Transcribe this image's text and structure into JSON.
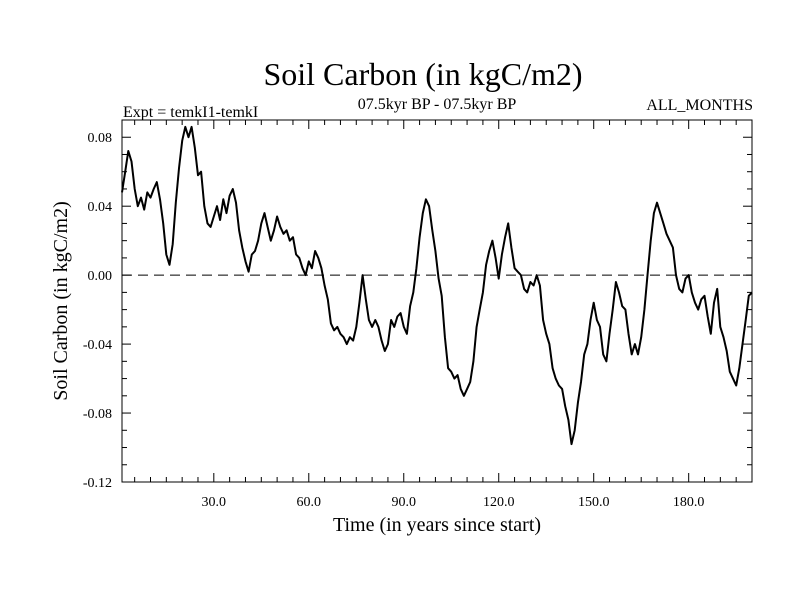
{
  "chart_data": {
    "type": "line",
    "title": "Soil Carbon (in kgC/m2)",
    "expt_label": "Expt = temkI1-temkI",
    "period_label": "07.5kyr BP - 07.5kyr BP",
    "months_label": "ALL_MONTHS",
    "xlabel": "Time (in years since start)",
    "ylabel": "Soil Carbon (in kgC/m2)",
    "xlim": [
      1,
      200
    ],
    "ylim": [
      -0.12,
      0.09
    ],
    "x_ticks": [
      30,
      60,
      90,
      120,
      150,
      180
    ],
    "x_tick_labels": [
      "30.0",
      "60.0",
      "90.0",
      "120.0",
      "150.0",
      "180.0"
    ],
    "y_ticks": [
      -0.12,
      -0.08,
      -0.04,
      0.0,
      0.04,
      0.08
    ],
    "y_tick_labels": [
      "-0.12",
      "-0.08",
      "-0.04",
      "0.00",
      "0.04",
      "0.08"
    ],
    "zero_line": true,
    "series": [
      {
        "name": "Soil Carbon",
        "color": "#000000",
        "points": [
          [
            1,
            0.048
          ],
          [
            2,
            0.06
          ],
          [
            3,
            0.072
          ],
          [
            4,
            0.066
          ],
          [
            5,
            0.05
          ],
          [
            6,
            0.04
          ],
          [
            7,
            0.045
          ],
          [
            8,
            0.038
          ],
          [
            9,
            0.048
          ],
          [
            10,
            0.045
          ],
          [
            11,
            0.05
          ],
          [
            12,
            0.054
          ],
          [
            13,
            0.044
          ],
          [
            14,
            0.03
          ],
          [
            15,
            0.012
          ],
          [
            16,
            0.006
          ],
          [
            17,
            0.018
          ],
          [
            18,
            0.042
          ],
          [
            19,
            0.062
          ],
          [
            20,
            0.078
          ],
          [
            21,
            0.086
          ],
          [
            22,
            0.08
          ],
          [
            23,
            0.086
          ],
          [
            24,
            0.074
          ],
          [
            25,
            0.058
          ],
          [
            26,
            0.06
          ],
          [
            27,
            0.04
          ],
          [
            28,
            0.03
          ],
          [
            29,
            0.028
          ],
          [
            30,
            0.034
          ],
          [
            31,
            0.04
          ],
          [
            32,
            0.032
          ],
          [
            33,
            0.044
          ],
          [
            34,
            0.036
          ],
          [
            35,
            0.046
          ],
          [
            36,
            0.05
          ],
          [
            37,
            0.042
          ],
          [
            38,
            0.026
          ],
          [
            39,
            0.016
          ],
          [
            40,
            0.008
          ],
          [
            41,
            0.002
          ],
          [
            42,
            0.012
          ],
          [
            43,
            0.014
          ],
          [
            44,
            0.02
          ],
          [
            45,
            0.03
          ],
          [
            46,
            0.036
          ],
          [
            47,
            0.028
          ],
          [
            48,
            0.02
          ],
          [
            49,
            0.026
          ],
          [
            50,
            0.034
          ],
          [
            51,
            0.028
          ],
          [
            52,
            0.024
          ],
          [
            53,
            0.026
          ],
          [
            54,
            0.02
          ],
          [
            55,
            0.022
          ],
          [
            56,
            0.012
          ],
          [
            57,
            0.01
          ],
          [
            58,
            0.004
          ],
          [
            59,
            0.0
          ],
          [
            60,
            0.008
          ],
          [
            61,
            0.004
          ],
          [
            62,
            0.014
          ],
          [
            63,
            0.01
          ],
          [
            64,
            0.004
          ],
          [
            65,
            -0.006
          ],
          [
            66,
            -0.014
          ],
          [
            67,
            -0.028
          ],
          [
            68,
            -0.032
          ],
          [
            69,
            -0.03
          ],
          [
            70,
            -0.034
          ],
          [
            71,
            -0.036
          ],
          [
            72,
            -0.04
          ],
          [
            73,
            -0.036
          ],
          [
            74,
            -0.038
          ],
          [
            75,
            -0.03
          ],
          [
            76,
            -0.016
          ],
          [
            77,
            0.0
          ],
          [
            78,
            -0.014
          ],
          [
            79,
            -0.026
          ],
          [
            80,
            -0.03
          ],
          [
            81,
            -0.026
          ],
          [
            82,
            -0.03
          ],
          [
            83,
            -0.038
          ],
          [
            84,
            -0.044
          ],
          [
            85,
            -0.04
          ],
          [
            86,
            -0.026
          ],
          [
            87,
            -0.03
          ],
          [
            88,
            -0.024
          ],
          [
            89,
            -0.022
          ],
          [
            90,
            -0.03
          ],
          [
            91,
            -0.034
          ],
          [
            92,
            -0.018
          ],
          [
            93,
            -0.01
          ],
          [
            94,
            0.004
          ],
          [
            95,
            0.022
          ],
          [
            96,
            0.036
          ],
          [
            97,
            0.044
          ],
          [
            98,
            0.04
          ],
          [
            99,
            0.026
          ],
          [
            100,
            0.014
          ],
          [
            101,
            -0.002
          ],
          [
            102,
            -0.012
          ],
          [
            103,
            -0.036
          ],
          [
            104,
            -0.054
          ],
          [
            105,
            -0.056
          ],
          [
            106,
            -0.06
          ],
          [
            107,
            -0.058
          ],
          [
            108,
            -0.066
          ],
          [
            109,
            -0.07
          ],
          [
            110,
            -0.066
          ],
          [
            111,
            -0.062
          ],
          [
            112,
            -0.05
          ],
          [
            113,
            -0.03
          ],
          [
            114,
            -0.02
          ],
          [
            115,
            -0.01
          ],
          [
            116,
            0.006
          ],
          [
            117,
            0.014
          ],
          [
            118,
            0.02
          ],
          [
            119,
            0.01
          ],
          [
            120,
            -0.002
          ],
          [
            121,
            0.012
          ],
          [
            122,
            0.022
          ],
          [
            123,
            0.03
          ],
          [
            124,
            0.016
          ],
          [
            125,
            0.004
          ],
          [
            126,
            0.002
          ],
          [
            127,
            0.0
          ],
          [
            128,
            -0.008
          ],
          [
            129,
            -0.01
          ],
          [
            130,
            -0.004
          ],
          [
            131,
            -0.006
          ],
          [
            132,
            0.0
          ],
          [
            133,
            -0.006
          ],
          [
            134,
            -0.026
          ],
          [
            135,
            -0.034
          ],
          [
            136,
            -0.04
          ],
          [
            137,
            -0.054
          ],
          [
            138,
            -0.06
          ],
          [
            139,
            -0.064
          ],
          [
            140,
            -0.066
          ],
          [
            141,
            -0.076
          ],
          [
            142,
            -0.084
          ],
          [
            143,
            -0.098
          ],
          [
            144,
            -0.09
          ],
          [
            145,
            -0.074
          ],
          [
            146,
            -0.062
          ],
          [
            147,
            -0.046
          ],
          [
            148,
            -0.04
          ],
          [
            149,
            -0.026
          ],
          [
            150,
            -0.016
          ],
          [
            151,
            -0.026
          ],
          [
            152,
            -0.03
          ],
          [
            153,
            -0.046
          ],
          [
            154,
            -0.05
          ],
          [
            155,
            -0.034
          ],
          [
            156,
            -0.02
          ],
          [
            157,
            -0.004
          ],
          [
            158,
            -0.01
          ],
          [
            159,
            -0.018
          ],
          [
            160,
            -0.02
          ],
          [
            161,
            -0.034
          ],
          [
            162,
            -0.046
          ],
          [
            163,
            -0.04
          ],
          [
            164,
            -0.046
          ],
          [
            165,
            -0.036
          ],
          [
            166,
            -0.02
          ],
          [
            167,
            0.0
          ],
          [
            168,
            0.02
          ],
          [
            169,
            0.036
          ],
          [
            170,
            0.042
          ],
          [
            171,
            0.036
          ],
          [
            172,
            0.03
          ],
          [
            173,
            0.024
          ],
          [
            174,
            0.02
          ],
          [
            175,
            0.016
          ],
          [
            176,
            0.0
          ],
          [
            177,
            -0.008
          ],
          [
            178,
            -0.01
          ],
          [
            179,
            -0.002
          ],
          [
            180,
            0.0
          ],
          [
            181,
            -0.01
          ],
          [
            182,
            -0.016
          ],
          [
            183,
            -0.02
          ],
          [
            184,
            -0.014
          ],
          [
            185,
            -0.012
          ],
          [
            186,
            -0.024
          ],
          [
            187,
            -0.034
          ],
          [
            188,
            -0.016
          ],
          [
            189,
            -0.008
          ],
          [
            190,
            -0.03
          ],
          [
            191,
            -0.036
          ],
          [
            192,
            -0.044
          ],
          [
            193,
            -0.056
          ],
          [
            194,
            -0.06
          ],
          [
            195,
            -0.064
          ],
          [
            196,
            -0.054
          ],
          [
            197,
            -0.04
          ],
          [
            198,
            -0.026
          ],
          [
            199,
            -0.012
          ],
          [
            200,
            -0.01
          ]
        ]
      }
    ]
  }
}
